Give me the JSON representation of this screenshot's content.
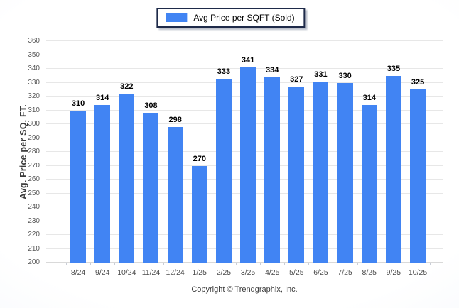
{
  "chart_data": {
    "type": "bar",
    "title": "Avg Price per SQFT (Sold)",
    "categories": [
      "8/24",
      "9/24",
      "10/24",
      "11/24",
      "12/24",
      "1/25",
      "2/25",
      "3/25",
      "4/25",
      "5/25",
      "6/25",
      "7/25",
      "8/25",
      "9/25",
      "10/25"
    ],
    "values": [
      310,
      314,
      322,
      308,
      298,
      270,
      333,
      341,
      334,
      327,
      331,
      330,
      314,
      335,
      325
    ],
    "xlabel": "",
    "ylabel": "Avg. Price per SQ. FT.",
    "ylim": [
      200,
      360
    ],
    "yticks": [
      200,
      210,
      220,
      230,
      240,
      250,
      260,
      270,
      280,
      290,
      300,
      310,
      320,
      330,
      340,
      350,
      360
    ],
    "grid": true,
    "data_labels": true,
    "legend_position": "top-center",
    "bar_color": "#4184f3"
  },
  "legend": {
    "label": "Avg Price per SQFT (Sold)"
  },
  "footer": {
    "copyright": "Copyright © Trendgraphix, Inc."
  }
}
